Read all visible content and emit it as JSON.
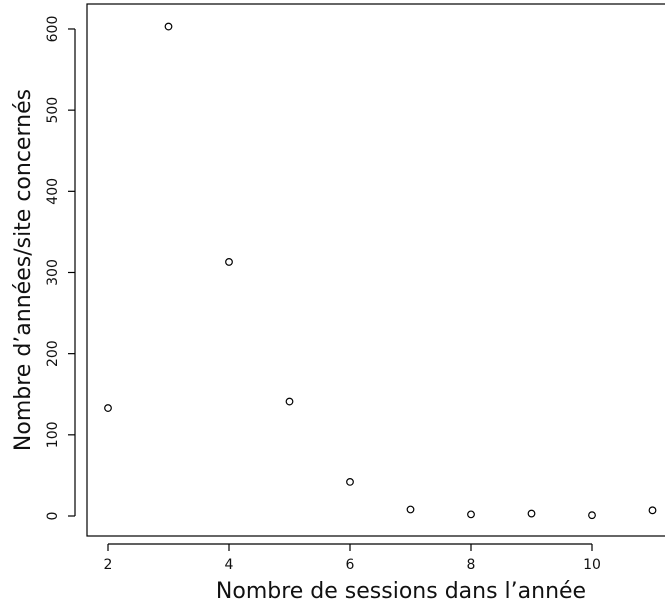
{
  "chart_data": {
    "type": "scatter",
    "title": "",
    "xlabel": "Nombre de sessions dans l’année",
    "ylabel": "Nombre d’années/site concernés",
    "xlim": [
      1.7,
      11.2
    ],
    "ylim": [
      -25,
      625
    ],
    "x_ticks": [
      2,
      4,
      6,
      8,
      10
    ],
    "y_ticks": [
      0,
      100,
      200,
      300,
      400,
      500,
      600
    ],
    "grid": false,
    "legend": "none",
    "marker": "open-circle",
    "points": [
      {
        "x": 2,
        "y": 133
      },
      {
        "x": 3,
        "y": 603
      },
      {
        "x": 4,
        "y": 313
      },
      {
        "x": 5,
        "y": 141
      },
      {
        "x": 6,
        "y": 42
      },
      {
        "x": 7,
        "y": 8
      },
      {
        "x": 8,
        "y": 2
      },
      {
        "x": 9,
        "y": 3
      },
      {
        "x": 10,
        "y": 1
      },
      {
        "x": 11,
        "y": 7
      }
    ]
  }
}
